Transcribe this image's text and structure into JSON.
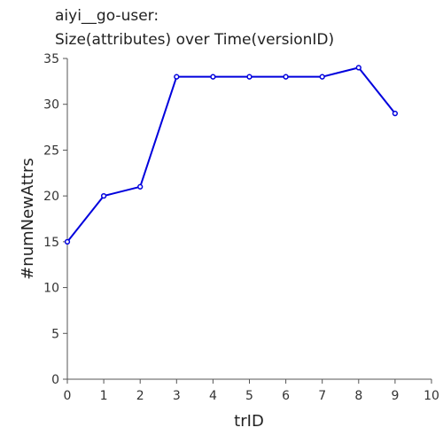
{
  "chart_data": {
    "type": "line",
    "title_lines": [
      "aiyi__go-user:",
      "Size(attributes) over Time(versionID)"
    ],
    "xlabel": "trID",
    "ylabel": "#numNewAttrs",
    "xlim": [
      0,
      10
    ],
    "ylim": [
      0,
      35
    ],
    "x_ticks": [
      "0",
      "1",
      "2",
      "3",
      "4",
      "5",
      "6",
      "7",
      "8",
      "9",
      "10"
    ],
    "y_ticks": [
      "0",
      "5",
      "10",
      "15",
      "20",
      "25",
      "30",
      "35"
    ],
    "grid": false,
    "series": [
      {
        "x": [
          0,
          1,
          2,
          3,
          4,
          5,
          6,
          7,
          8,
          9
        ],
        "values": [
          15,
          20,
          21,
          33,
          33,
          33,
          33,
          33,
          34,
          29
        ],
        "color": "#0000dd",
        "marker": "circle"
      }
    ]
  }
}
